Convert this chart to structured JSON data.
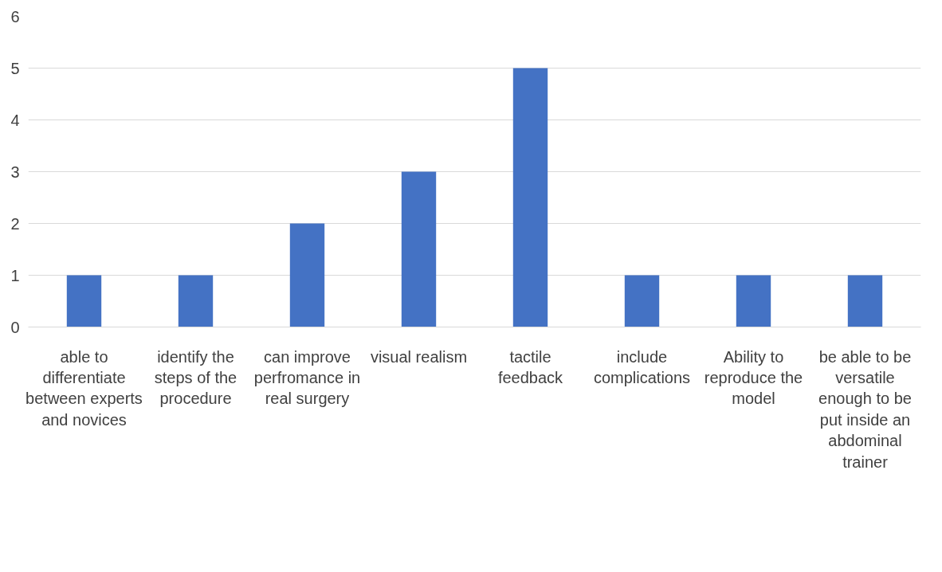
{
  "chart_data": {
    "type": "bar",
    "categories": [
      "able to differentiate between experts and novices",
      "identify the steps of the procedure",
      "can improve perfromance in real surgery",
      "visual realism",
      "tactile feedback",
      "include complications",
      "Ability to reproduce the model",
      "be able to be versatile enough to be put inside an abdominal trainer"
    ],
    "values": [
      1,
      1,
      2,
      3,
      5,
      1,
      1,
      1
    ],
    "color": "#4472c4",
    "ylim": [
      0,
      6
    ],
    "yticks": [
      0,
      1,
      2,
      3,
      4,
      5,
      6
    ],
    "grid": "y"
  }
}
